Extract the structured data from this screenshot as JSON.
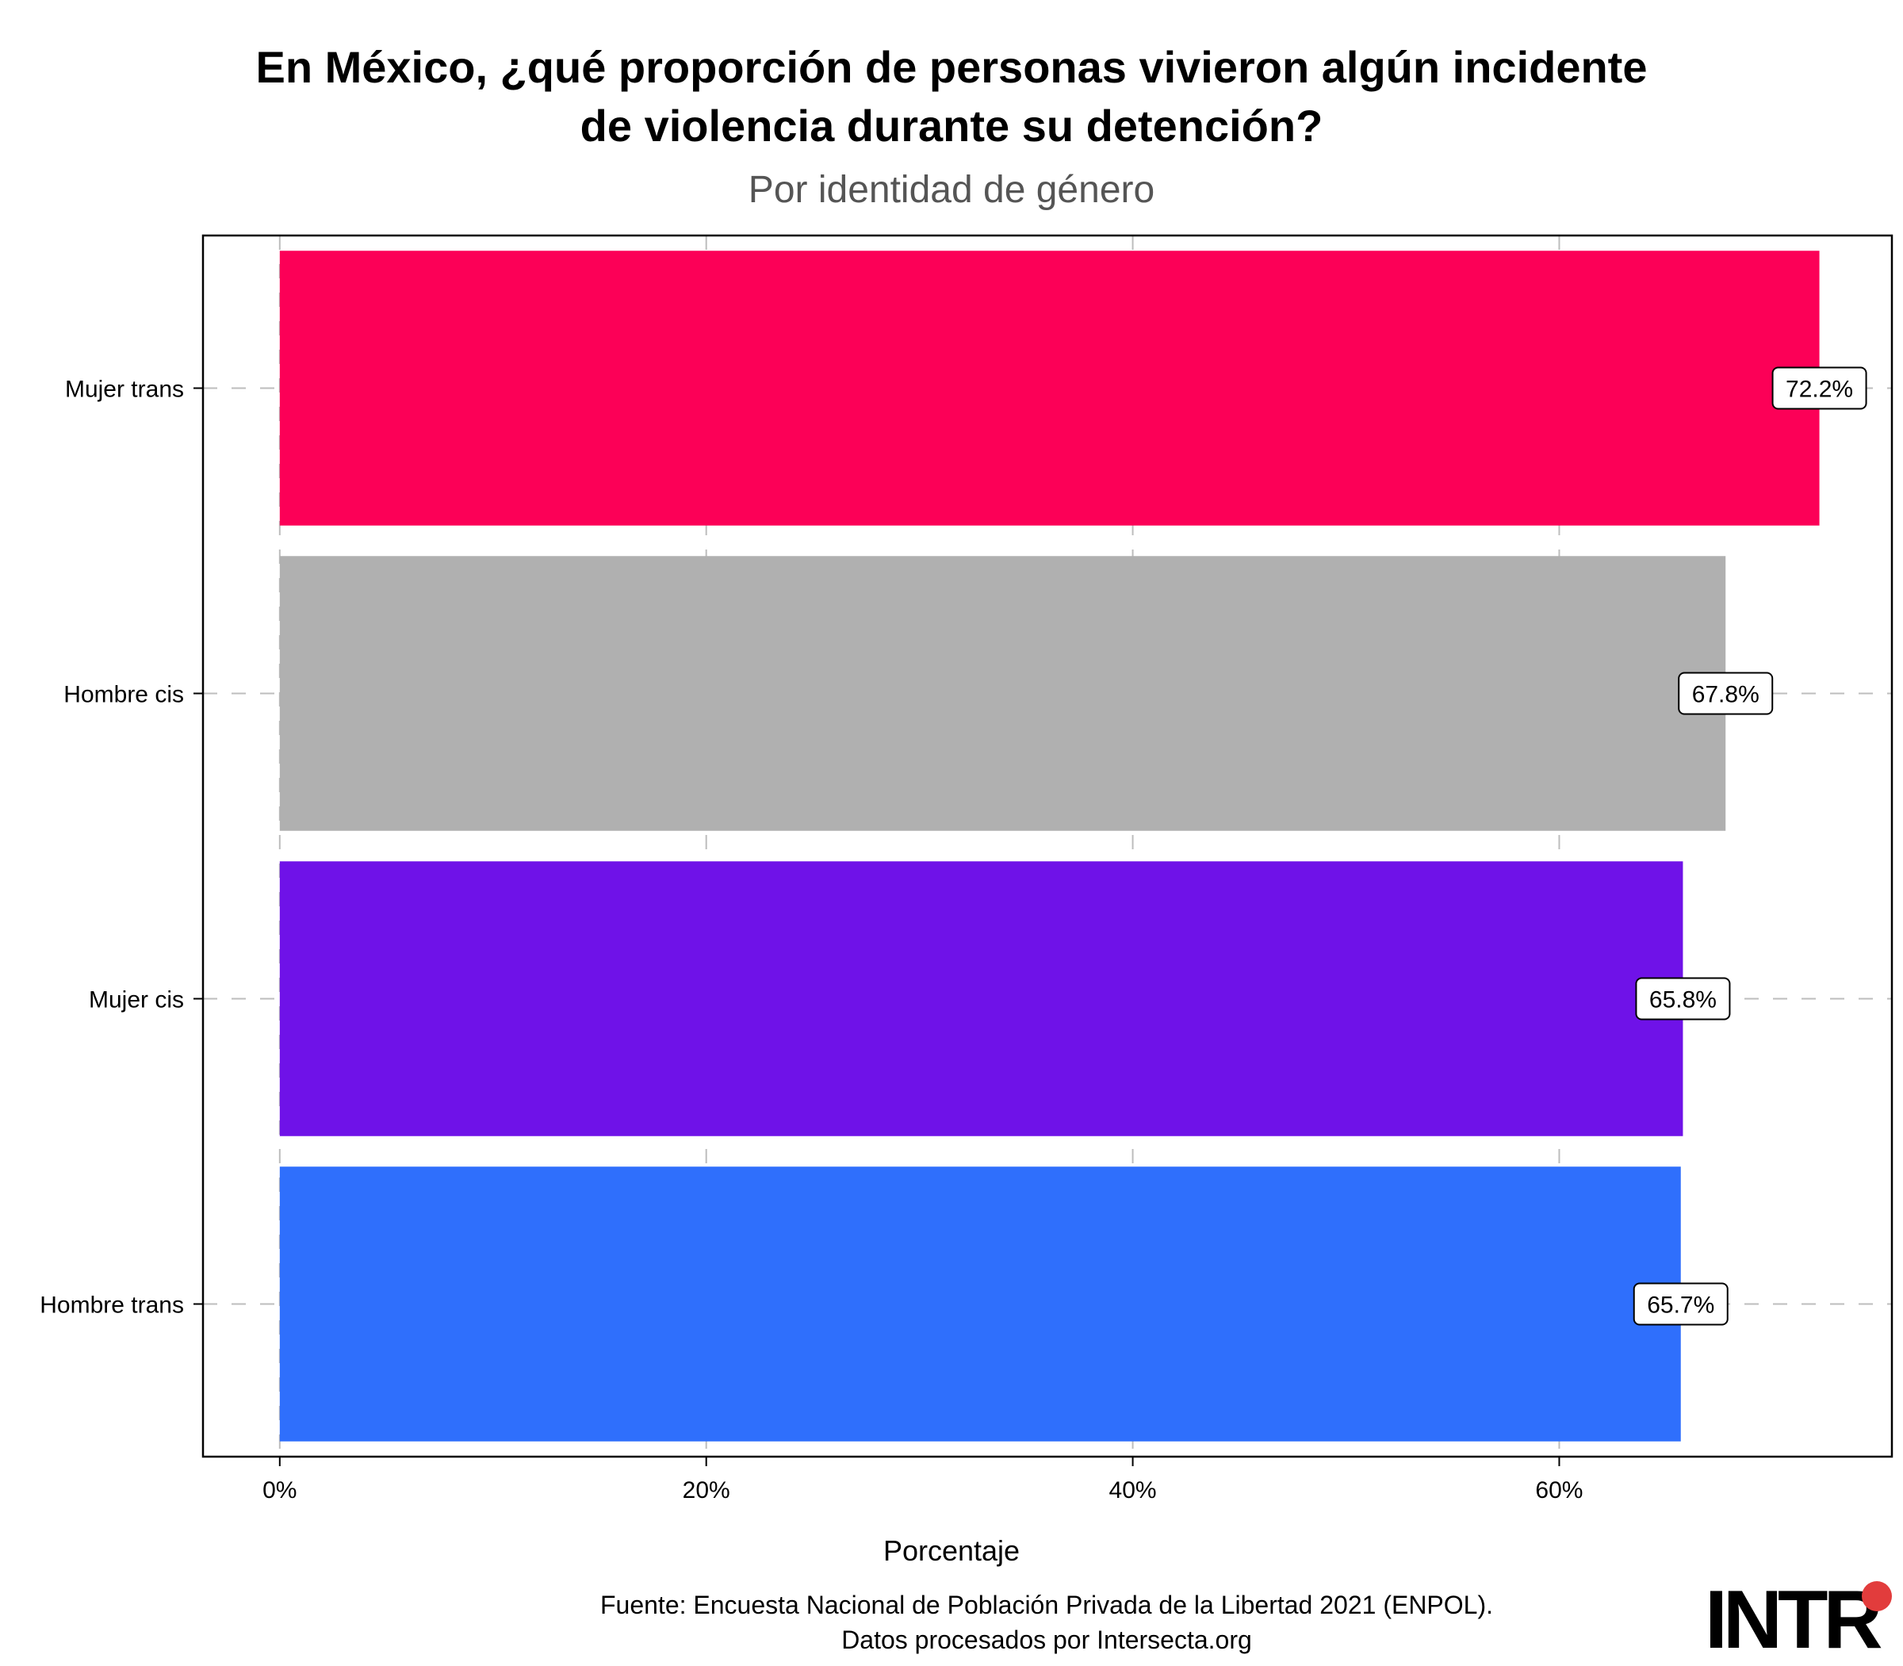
{
  "title_line1": "En México, ¿qué proporción de personas vivieron algún incidente",
  "title_line2": "de violencia durante su detención?",
  "subtitle": "Por identidad de género",
  "caption_line1": "Fuente: Encuesta Nacional de Población Privada de la Libertad 2021 (ENPOL).",
  "caption_line2": "Datos procesados por Intersecta.org",
  "logo_text": "INTR",
  "chart_data": {
    "type": "bar",
    "orientation": "horizontal",
    "title": "En México, ¿qué proporción de personas vivieron algún incidente de violencia durante su detención?",
    "subtitle": "Por identidad de género",
    "xlabel": "Porcentaje",
    "ylabel": "",
    "categories": [
      "Mujer trans",
      "Hombre cis",
      "Mujer cis",
      "Hombre trans"
    ],
    "values": [
      72.2,
      67.8,
      65.8,
      65.7
    ],
    "data_labels": [
      "72.2%",
      "67.8%",
      "65.8%",
      "65.7%"
    ],
    "colors": [
      "#fc0057",
      "#b0b0b0",
      "#6f12e8",
      "#2f6ffc"
    ],
    "xlim": [
      -3.6,
      75.6
    ],
    "xticks": [
      0,
      20,
      40,
      60
    ],
    "xtick_labels": [
      "0%",
      "20%",
      "40%",
      "60%"
    ],
    "grid": "dashed",
    "legend": "none"
  }
}
